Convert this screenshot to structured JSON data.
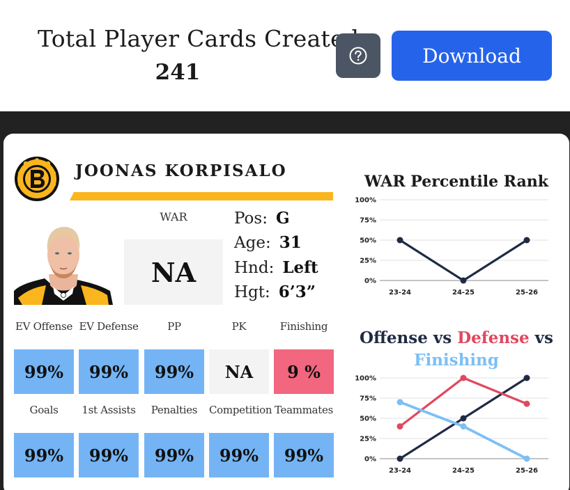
{
  "header": {
    "total_label": "Total Player Cards Created:",
    "total_count": "241",
    "help_icon": "question-circle-icon",
    "download_label": "Download",
    "download_color": "#2563eb",
    "help_color": "#4b5563"
  },
  "card": {
    "team_logo_icon": "bruins-logo-icon",
    "player_name": "JOONAS KORPISALO",
    "war_label": "WAR",
    "war_value": "NA",
    "bio": [
      {
        "key": "Pos:",
        "value": "G"
      },
      {
        "key": "Age:",
        "value": "31"
      },
      {
        "key": "Hnd:",
        "value": "Left"
      },
      {
        "key": "Hgt:",
        "value": "6’3”"
      }
    ],
    "stats_row1": [
      {
        "label": "EV Offense",
        "value": "99%",
        "color": "blue"
      },
      {
        "label": "EV Defense",
        "value": "99%",
        "color": "blue"
      },
      {
        "label": "PP",
        "value": "99%",
        "color": "blue"
      },
      {
        "label": "PK",
        "value": "NA",
        "color": "gray"
      },
      {
        "label": "Finishing",
        "value": "9 %",
        "color": "pink"
      }
    ],
    "stats_row2": [
      {
        "label": "Goals",
        "value": "99%",
        "color": "blue"
      },
      {
        "label": "1st Assists",
        "value": "99%",
        "color": "blue"
      },
      {
        "label": "Penalties",
        "value": "99%",
        "color": "blue"
      },
      {
        "label": "Competition",
        "value": "99%",
        "color": "blue"
      },
      {
        "label": "Teammates",
        "value": "99%",
        "color": "blue"
      }
    ]
  },
  "chart_data": [
    {
      "type": "line",
      "title": "WAR Percentile Rank",
      "x": [
        "23-24",
        "24-25",
        "25-26"
      ],
      "ylim": [
        0,
        100
      ],
      "yticks": [
        "0%",
        "25%",
        "50%",
        "75%",
        "100%"
      ],
      "series": [
        {
          "values": [
            50,
            0,
            50
          ],
          "color": "#1f2a44"
        }
      ]
    },
    {
      "type": "line",
      "title_parts": [
        "Offense",
        "vs",
        "Defense",
        "vs",
        "Finishing"
      ],
      "x": [
        "23-24",
        "24-25",
        "25-26"
      ],
      "ylim": [
        0,
        100
      ],
      "yticks": [
        "0%",
        "25%",
        "50%",
        "75%",
        "100%"
      ],
      "series": [
        {
          "name": "Offense",
          "values": [
            0,
            50,
            100
          ],
          "color": "#1f2a44",
          "dashed": false
        },
        {
          "name": "Defense",
          "values": [
            40,
            100,
            68
          ],
          "color": "#e0485e",
          "dashed": false
        },
        {
          "name": "Finishing",
          "values": [
            70,
            40,
            0
          ],
          "color": "#7cbff5",
          "dashed": true
        }
      ]
    }
  ]
}
